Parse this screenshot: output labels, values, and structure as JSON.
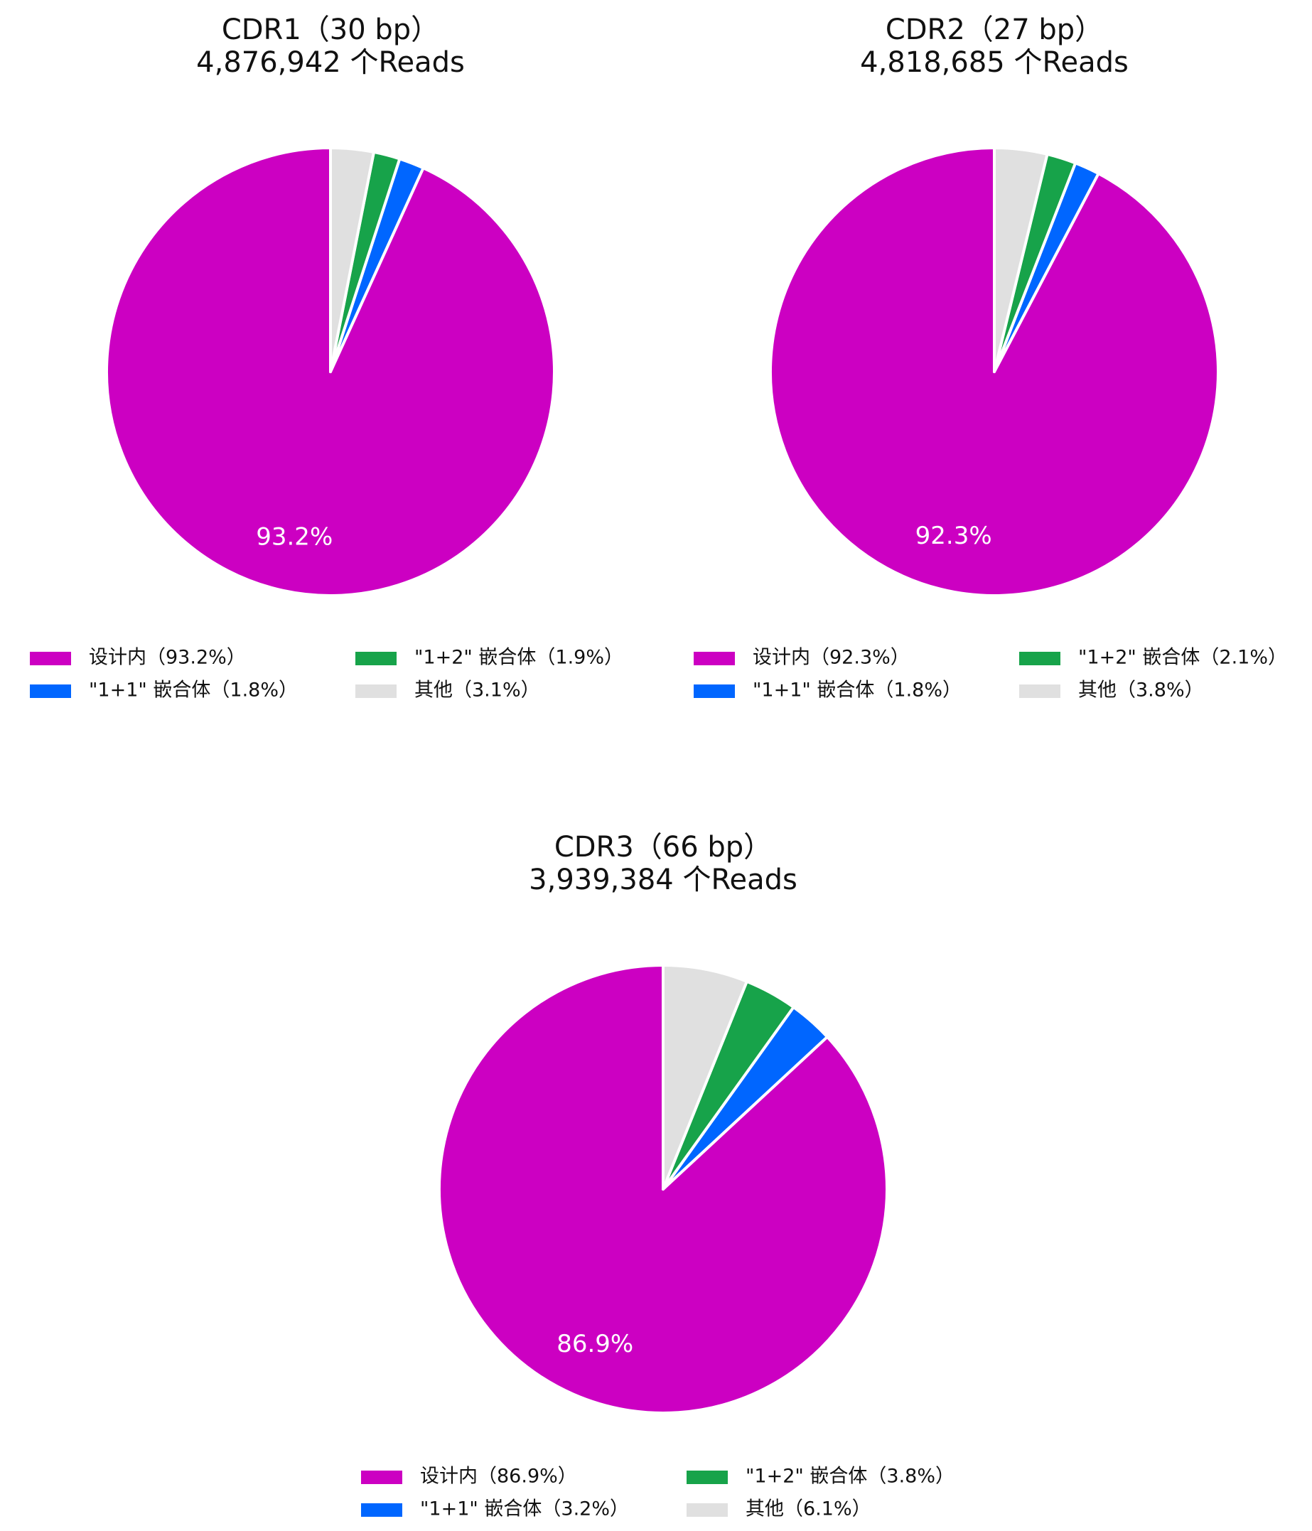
{
  "chart_data": [
    {
      "type": "pie",
      "title": "CDR1（30 bp）",
      "subtitle": "4,876,942 个Reads",
      "categories": [
        "设计内（93.2%）",
        "\"1+1\" 嵌合体（1.8%）",
        "\"1+2\" 嵌合体（1.9%）",
        "其他（3.1%）"
      ],
      "values": [
        93.2,
        1.8,
        1.9,
        3.1
      ],
      "value_labels": [
        "93.2%",
        null,
        null,
        null
      ],
      "colors": [
        "#cc00c2",
        "#0066ff",
        "#17a34a",
        "#e0e0e0"
      ]
    },
    {
      "type": "pie",
      "title": "CDR2（27 bp）",
      "subtitle": "4,818,685 个Reads",
      "categories": [
        "设计内（92.3%）",
        "\"1+1\" 嵌合体（1.8%）",
        "\"1+2\" 嵌合体（2.1%）",
        "其他（3.8%）"
      ],
      "values": [
        92.3,
        1.8,
        2.1,
        3.8
      ],
      "value_labels": [
        "92.3%",
        null,
        null,
        null
      ],
      "colors": [
        "#cc00c2",
        "#0066ff",
        "#17a34a",
        "#e0e0e0"
      ]
    },
    {
      "type": "pie",
      "title": "CDR3（66 bp）",
      "subtitle": "3,939,384 个Reads",
      "categories": [
        "设计内（86.9%）",
        "\"1+1\" 嵌合体（3.2%）",
        "\"1+2\" 嵌合体（3.8%）",
        "其他（6.1%）"
      ],
      "values": [
        86.9,
        3.2,
        3.8,
        6.1
      ],
      "value_labels": [
        "86.9%",
        null,
        null,
        null
      ],
      "colors": [
        "#cc00c2",
        "#0066ff",
        "#17a34a",
        "#e0e0e0"
      ]
    }
  ]
}
